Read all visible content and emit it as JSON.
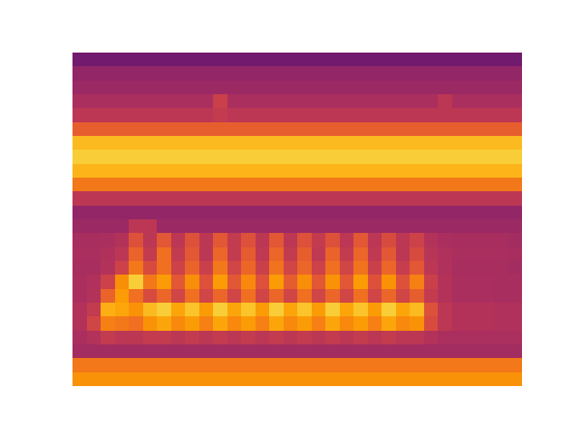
{
  "chart_data": {
    "type": "heatmap",
    "color": "inferno",
    "tick_labels": false,
    "zlim": [
      0,
      10
    ],
    "cells": [
      [
        3.2,
        3.2,
        3.2,
        3.2,
        3.2,
        3.2,
        3.2,
        3.2,
        3.2,
        3.2,
        3.2,
        3.2,
        3.2,
        3.2,
        3.2,
        3.2,
        3.2,
        3.2,
        3.2,
        3.2,
        3.2,
        3.2,
        3.2,
        3.2,
        3.2,
        3.2,
        3.2,
        3.2,
        3.2,
        3.2,
        3.2,
        3.2
      ],
      [
        4.0,
        4.0,
        4.0,
        4.0,
        4.0,
        4.0,
        4.0,
        4.0,
        4.0,
        4.0,
        4.0,
        4.0,
        4.0,
        4.0,
        4.0,
        4.0,
        4.0,
        4.0,
        4.0,
        4.0,
        4.0,
        4.0,
        4.0,
        4.0,
        4.0,
        4.0,
        4.0,
        4.0,
        4.0,
        4.0,
        4.0,
        4.0
      ],
      [
        4.2,
        4.2,
        4.2,
        4.2,
        4.2,
        4.2,
        4.2,
        4.2,
        4.2,
        4.2,
        4.2,
        4.2,
        4.2,
        4.2,
        4.2,
        4.2,
        4.2,
        4.2,
        4.2,
        4.2,
        4.2,
        4.2,
        4.2,
        4.2,
        4.2,
        4.2,
        4.2,
        4.2,
        4.2,
        4.2,
        4.2,
        4.2
      ],
      [
        4.6,
        4.6,
        4.6,
        4.6,
        4.6,
        4.6,
        4.6,
        4.6,
        4.6,
        4.6,
        5.4,
        4.6,
        4.6,
        4.6,
        4.6,
        4.6,
        4.6,
        4.6,
        4.6,
        4.6,
        4.6,
        4.6,
        4.6,
        4.6,
        4.6,
        4.6,
        5.0,
        4.6,
        4.6,
        4.6,
        4.6,
        4.6
      ],
      [
        5.0,
        5.0,
        5.0,
        5.0,
        5.0,
        5.0,
        5.0,
        5.0,
        5.0,
        5.0,
        5.2,
        5.0,
        5.0,
        5.0,
        5.0,
        5.0,
        5.0,
        5.0,
        5.0,
        5.0,
        5.0,
        5.0,
        5.0,
        5.0,
        5.0,
        5.0,
        5.0,
        5.0,
        5.0,
        5.0,
        5.0,
        5.0
      ],
      [
        6.4,
        6.4,
        6.4,
        6.4,
        6.4,
        6.4,
        6.4,
        6.4,
        6.4,
        6.4,
        6.4,
        6.4,
        6.4,
        6.4,
        6.4,
        6.4,
        6.4,
        6.4,
        6.4,
        6.4,
        6.4,
        6.4,
        6.4,
        6.4,
        6.4,
        6.4,
        6.4,
        6.4,
        6.4,
        6.4,
        6.4,
        6.4
      ],
      [
        8.4,
        8.4,
        8.4,
        8.4,
        8.4,
        8.4,
        8.4,
        8.4,
        8.4,
        8.4,
        8.4,
        8.4,
        8.4,
        8.4,
        8.4,
        8.4,
        8.4,
        8.4,
        8.4,
        8.4,
        8.4,
        8.4,
        8.4,
        8.4,
        8.4,
        8.4,
        8.4,
        8.4,
        8.4,
        8.4,
        8.4,
        8.4
      ],
      [
        8.8,
        8.8,
        8.8,
        8.8,
        8.8,
        8.8,
        8.8,
        8.8,
        8.8,
        8.8,
        8.8,
        8.8,
        8.8,
        8.8,
        8.8,
        8.8,
        8.8,
        8.8,
        8.8,
        8.8,
        8.8,
        8.8,
        8.8,
        8.8,
        8.8,
        8.8,
        8.8,
        8.8,
        8.8,
        8.8,
        8.8,
        8.8
      ],
      [
        8.3,
        8.3,
        8.3,
        8.3,
        8.3,
        8.3,
        8.3,
        8.3,
        8.3,
        8.3,
        8.3,
        8.3,
        8.3,
        8.3,
        8.3,
        8.3,
        8.3,
        8.3,
        8.3,
        8.3,
        8.3,
        8.3,
        8.3,
        8.3,
        8.3,
        8.3,
        8.3,
        8.3,
        8.3,
        8.3,
        8.3,
        8.3
      ],
      [
        7.0,
        7.0,
        7.0,
        7.0,
        7.0,
        7.0,
        7.0,
        7.0,
        7.0,
        7.0,
        7.0,
        7.0,
        7.0,
        7.0,
        7.0,
        7.0,
        7.0,
        7.0,
        7.0,
        7.0,
        7.0,
        7.0,
        7.0,
        7.0,
        7.0,
        7.0,
        7.0,
        7.0,
        7.0,
        7.0,
        7.0,
        7.0
      ],
      [
        5.0,
        5.0,
        5.0,
        5.0,
        5.0,
        5.0,
        5.0,
        5.0,
        5.0,
        5.0,
        5.0,
        5.0,
        5.0,
        5.0,
        5.0,
        5.0,
        5.0,
        5.0,
        5.0,
        5.0,
        5.0,
        5.0,
        5.0,
        5.0,
        5.0,
        5.0,
        5.0,
        5.0,
        5.0,
        5.0,
        5.0,
        5.0
      ],
      [
        4.0,
        4.0,
        4.0,
        4.0,
        4.0,
        4.0,
        4.0,
        4.0,
        4.0,
        4.0,
        4.0,
        4.0,
        4.0,
        4.0,
        4.0,
        4.0,
        4.0,
        4.0,
        4.0,
        4.0,
        4.0,
        4.0,
        4.0,
        4.0,
        4.0,
        4.0,
        4.0,
        4.0,
        4.0,
        4.0,
        4.0,
        4.0
      ],
      [
        4.2,
        4.2,
        4.2,
        4.2,
        5.0,
        5.0,
        4.2,
        4.2,
        4.2,
        4.2,
        4.2,
        4.2,
        4.2,
        4.2,
        4.2,
        4.2,
        4.2,
        4.2,
        4.2,
        4.2,
        4.2,
        4.2,
        4.2,
        4.2,
        4.2,
        4.2,
        4.2,
        4.2,
        4.2,
        4.2,
        4.2,
        4.2
      ],
      [
        4.5,
        4.5,
        4.6,
        4.8,
        6.0,
        5.0,
        6.2,
        5.0,
        6.0,
        5.0,
        6.2,
        5.2,
        6.0,
        5.0,
        6.2,
        5.0,
        6.0,
        5.2,
        6.0,
        5.0,
        6.2,
        5.0,
        5.8,
        5.0,
        5.5,
        4.8,
        4.6,
        4.5,
        4.5,
        4.5,
        4.5,
        4.4
      ],
      [
        4.6,
        4.6,
        4.7,
        5.0,
        6.5,
        5.2,
        6.8,
        5.2,
        6.2,
        5.0,
        6.6,
        5.2,
        6.3,
        5.1,
        6.6,
        5.2,
        6.4,
        5.1,
        6.5,
        5.2,
        6.6,
        5.1,
        6.2,
        5.0,
        5.8,
        4.9,
        4.7,
        4.6,
        4.6,
        4.6,
        4.6,
        4.5
      ],
      [
        4.5,
        4.5,
        4.8,
        5.5,
        7.0,
        5.8,
        6.8,
        5.5,
        6.5,
        5.4,
        7.0,
        5.6,
        6.6,
        5.4,
        6.9,
        5.6,
        6.6,
        5.5,
        6.8,
        5.6,
        6.9,
        5.4,
        6.6,
        5.3,
        6.2,
        5.0,
        4.7,
        4.5,
        4.5,
        4.5,
        4.5,
        4.4
      ],
      [
        4.6,
        4.7,
        5.5,
        7.5,
        8.8,
        7.0,
        7.8,
        6.2,
        7.5,
        6.0,
        7.8,
        6.2,
        7.4,
        6.0,
        7.8,
        6.3,
        7.5,
        6.2,
        7.6,
        6.2,
        7.8,
        6.0,
        7.6,
        6.0,
        7.2,
        5.4,
        4.8,
        4.6,
        4.6,
        4.6,
        4.5,
        4.5
      ],
      [
        4.6,
        4.8,
        6.5,
        7.8,
        6.8,
        5.8,
        6.6,
        5.6,
        6.8,
        5.6,
        6.6,
        5.6,
        6.8,
        5.6,
        6.6,
        5.6,
        6.8,
        5.6,
        6.6,
        5.6,
        6.8,
        5.6,
        6.6,
        5.6,
        6.4,
        5.2,
        4.8,
        4.6,
        4.6,
        4.6,
        4.5,
        4.5
      ],
      [
        4.8,
        5.2,
        8.2,
        8.0,
        7.6,
        8.4,
        8.8,
        8.0,
        8.6,
        7.8,
        8.8,
        8.0,
        8.6,
        7.8,
        8.8,
        8.0,
        8.6,
        7.8,
        8.8,
        8.0,
        8.6,
        7.8,
        8.8,
        8.0,
        8.4,
        6.0,
        5.0,
        4.8,
        4.8,
        4.8,
        4.7,
        4.7
      ],
      [
        4.8,
        5.6,
        7.2,
        7.0,
        6.8,
        7.6,
        8.0,
        7.4,
        7.8,
        7.2,
        8.0,
        7.4,
        7.8,
        7.2,
        8.0,
        7.4,
        7.8,
        7.2,
        8.0,
        7.4,
        7.8,
        7.2,
        8.0,
        7.4,
        7.6,
        5.8,
        5.0,
        4.8,
        4.8,
        4.8,
        4.7,
        4.7
      ],
      [
        4.6,
        4.8,
        5.2,
        5.0,
        5.0,
        5.2,
        5.2,
        5.0,
        5.2,
        5.0,
        5.2,
        5.0,
        5.2,
        5.0,
        5.2,
        5.0,
        5.2,
        5.0,
        5.2,
        5.0,
        5.2,
        5.0,
        5.2,
        5.0,
        5.0,
        4.8,
        4.6,
        4.6,
        4.6,
        4.6,
        4.6,
        4.6
      ],
      [
        4.4,
        4.4,
        4.4,
        4.4,
        4.4,
        4.4,
        4.4,
        4.4,
        4.4,
        4.4,
        4.4,
        4.4,
        4.4,
        4.4,
        4.4,
        4.4,
        4.4,
        4.4,
        4.4,
        4.4,
        4.4,
        4.4,
        4.4,
        4.4,
        4.4,
        4.4,
        4.4,
        4.4,
        4.4,
        4.4,
        4.4,
        4.4
      ],
      [
        7.0,
        7.0,
        7.0,
        7.0,
        7.0,
        7.0,
        7.0,
        7.0,
        7.0,
        7.0,
        7.0,
        7.0,
        7.0,
        7.0,
        7.0,
        7.0,
        7.0,
        7.0,
        7.0,
        7.0,
        7.0,
        7.0,
        7.0,
        7.0,
        7.0,
        7.0,
        7.0,
        7.0,
        7.0,
        7.0,
        7.0,
        7.0
      ],
      [
        7.6,
        7.6,
        7.6,
        7.6,
        7.6,
        7.6,
        7.6,
        7.6,
        7.6,
        7.6,
        7.6,
        7.6,
        7.6,
        7.6,
        7.6,
        7.6,
        7.6,
        7.6,
        7.6,
        7.6,
        7.6,
        7.6,
        7.6,
        7.6,
        7.6,
        7.6,
        7.6,
        7.6,
        7.6,
        7.6,
        7.6,
        7.6
      ]
    ]
  }
}
